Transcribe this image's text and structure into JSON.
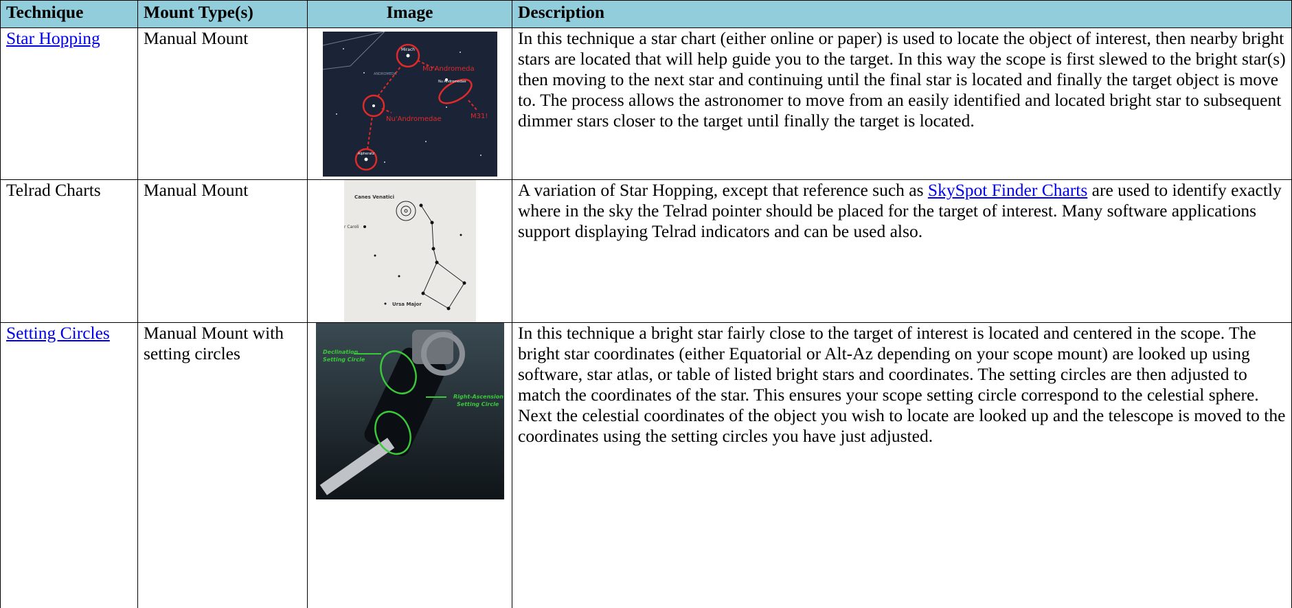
{
  "table": {
    "headers": [
      "Technique",
      "Mount Type(s)",
      "Image",
      "Description"
    ],
    "rows": [
      {
        "technique": "Star Hopping",
        "mount": "Manual Mount",
        "image_labels": [
          "Mirach",
          "ANDROMEDA",
          "Mu'Andromeda",
          "Nu Andromedae",
          "M31!",
          "Nu'Andromedae",
          "Alpheratz"
        ],
        "description": [
          "In this technique a star chart (either online or paper) is used to locate the object of interest, then nearby bright stars are located that will help guide you to the target.  In this way the scope is first slewed to the bright star(s) then moving to the next star and continuing until the final star is located and finally the target object is move to.  The process allows the astronomer to move from an easily identified and located bright star to subsequent dimmer stars closer to the target until finally the target is located."
        ]
      },
      {
        "technique": "Telrad Charts",
        "mount": "Manual Mount",
        "image_labels": [
          "Canes Venatici",
          "r Caroli",
          "Ursa Major"
        ],
        "description": [
          "A variation of Star Hopping, except that reference such as ",
          "SkySpot Finder Charts",
          " are used to identify exactly where in the sky the Telrad pointer should be placed for the target of interest.  Many software applications support displaying Telrad indicators and can be used also."
        ]
      },
      {
        "technique": "Setting Circles",
        "mount": "Manual Mount with setting circles",
        "image_labels": [
          "Declination",
          "Setting Circle",
          "Right-Ascension",
          "Setting Circle"
        ],
        "description": [
          "In this technique a bright star fairly close to the target of interest is located and centered in the scope.  The bright star coordinates (either Equatorial or Alt-Az depending on your scope mount) are looked up using software, star atlas, or table of listed bright stars and coordinates.  The setting circles are then adjusted to match the coordinates of the star. This ensures your scope setting circle correspond to the celestial sphere. Next the celestial coordinates of the object you wish to locate are looked up and the telescope is moved to the coordinates using the setting circles you have just adjusted."
        ]
      }
    ]
  }
}
